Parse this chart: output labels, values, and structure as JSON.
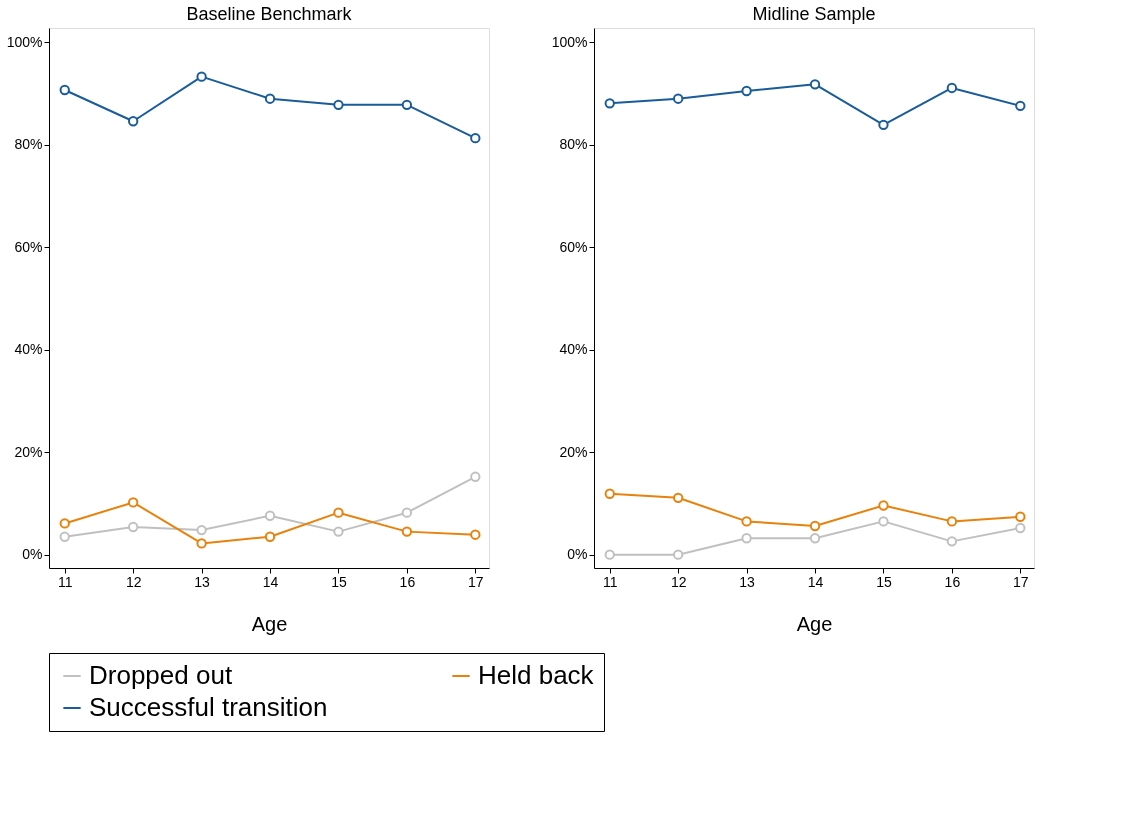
{
  "chart_data": [
    {
      "type": "line",
      "title": "Baseline Benchmark",
      "xlabel": "Age",
      "x": [
        11,
        12,
        13,
        14,
        15,
        16,
        17
      ],
      "xlim": [
        10.77,
        17.2
      ],
      "xticks": [
        11,
        12,
        13,
        14,
        15,
        16,
        17
      ],
      "ylim": [
        -2.6,
        102.8
      ],
      "yticks": [
        {
          "value": 0,
          "label": "0%"
        },
        {
          "value": 20,
          "label": "20%"
        },
        {
          "value": 40,
          "label": "40%"
        },
        {
          "value": 60,
          "label": "60%"
        },
        {
          "value": 80,
          "label": "80%"
        },
        {
          "value": 100,
          "label": "100%"
        }
      ],
      "grid": false,
      "marker": "circle",
      "legend": "bottom",
      "series": [
        {
          "name": "Dropped out",
          "color": "#c0c0c0",
          "values": [
            3.5,
            5.4,
            4.8,
            7.6,
            4.5,
            8.2,
            15.2
          ]
        },
        {
          "name": "Held back",
          "color": "#e8820c",
          "values": [
            6.1,
            10.2,
            2.2,
            3.5,
            8.2,
            4.5,
            3.9
          ]
        },
        {
          "name": "Successful transition",
          "color": "#1a5c9a",
          "values": [
            90.7,
            84.6,
            93.3,
            89.0,
            87.8,
            87.8,
            81.3
          ]
        }
      ]
    },
    {
      "type": "line",
      "title": "Midline Sample",
      "xlabel": "Age",
      "x": [
        11,
        12,
        13,
        14,
        15,
        16,
        17
      ],
      "xlim": [
        10.77,
        17.2
      ],
      "xticks": [
        11,
        12,
        13,
        14,
        15,
        16,
        17
      ],
      "ylim": [
        -2.6,
        102.8
      ],
      "yticks": [
        {
          "value": 0,
          "label": "0%"
        },
        {
          "value": 20,
          "label": "20%"
        },
        {
          "value": 40,
          "label": "40%"
        },
        {
          "value": 60,
          "label": "60%"
        },
        {
          "value": 80,
          "label": "80%"
        },
        {
          "value": 100,
          "label": "100%"
        }
      ],
      "grid": false,
      "marker": "circle",
      "legend": "bottom",
      "series": [
        {
          "name": "Dropped out",
          "color": "#c0c0c0",
          "values": [
            0.0,
            0.0,
            3.2,
            3.2,
            6.5,
            2.6,
            5.2
          ]
        },
        {
          "name": "Held back",
          "color": "#e8820c",
          "values": [
            11.9,
            11.1,
            6.5,
            5.6,
            9.6,
            6.5,
            7.4
          ]
        },
        {
          "name": "Successful transition",
          "color": "#1a5c9a",
          "values": [
            88.1,
            89.0,
            90.5,
            91.8,
            83.9,
            91.1,
            87.6
          ]
        }
      ]
    }
  ]
}
